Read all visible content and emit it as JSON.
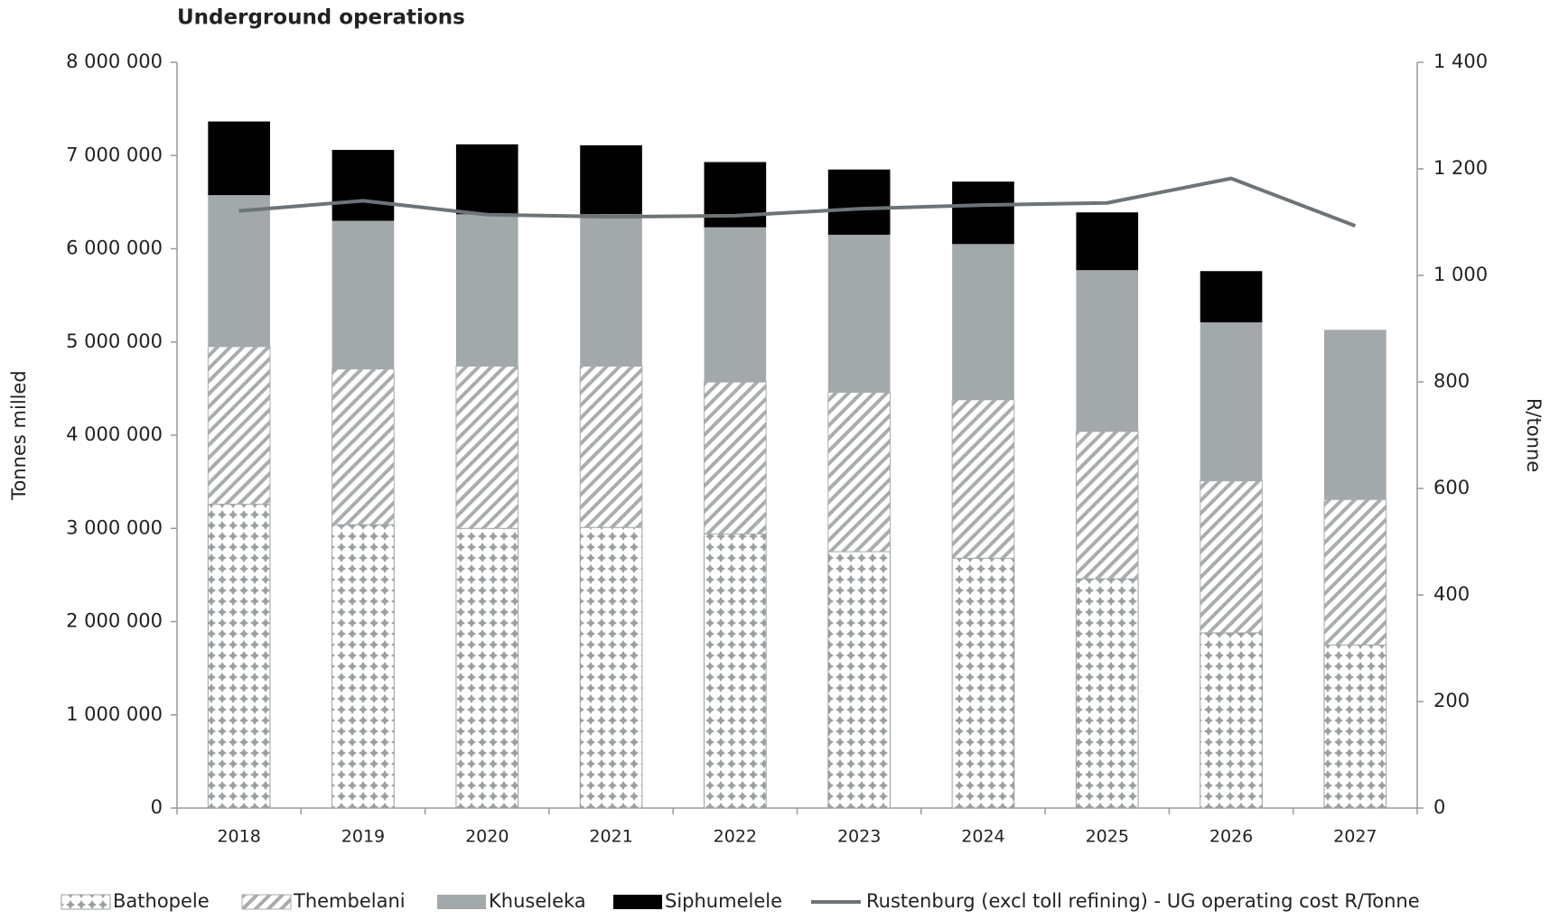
{
  "chart_data": {
    "type": "stacked_bar_line",
    "title": "Underground operations",
    "y_label": "Tonnes milled",
    "y2_label": "R/tonne",
    "categories": [
      "2018",
      "2019",
      "2020",
      "2021",
      "2022",
      "2023",
      "2024",
      "2025",
      "2026",
      "2027"
    ],
    "series": [
      {
        "name": "Bathopele",
        "color": "#9a9fa2",
        "pattern": "dots",
        "values": [
          3260000,
          3040000,
          3000000,
          3010000,
          2940000,
          2750000,
          2680000,
          2460000,
          1880000,
          1750000
        ]
      },
      {
        "name": "Thembelani",
        "color": "#a9adaf",
        "pattern": "hatch",
        "values": [
          1690000,
          1670000,
          1740000,
          1730000,
          1630000,
          1710000,
          1700000,
          1580000,
          1630000,
          1560000
        ]
      },
      {
        "name": "Khuseleka",
        "color": "#a3a8aa",
        "values": [
          1625000,
          1590000,
          1630000,
          1630000,
          1660000,
          1690000,
          1670000,
          1730000,
          1700000,
          1820000
        ]
      },
      {
        "name": "Siphumelele",
        "color": "#000000",
        "values": [
          790000,
          760000,
          750000,
          740000,
          700000,
          700000,
          670000,
          620000,
          550000,
          null
        ]
      },
      {
        "name": "Rustenburg (excl toll refining) - UG operating cost R/Tonne",
        "color": "#6d7478",
        "axis": "y2",
        "kind": "line",
        "values": [
          1121,
          1140,
          1114,
          1110,
          1112,
          1125,
          1132,
          1136,
          1182,
          1093
        ]
      }
    ],
    "ylim": [
      0,
      8000000
    ],
    "yticks": [
      {
        "value": 0,
        "label": "0"
      },
      {
        "value": 1000000,
        "label": "1 000 000"
      },
      {
        "value": 2000000,
        "label": "2 000 000"
      },
      {
        "value": 3000000,
        "label": "3 000 000"
      },
      {
        "value": 4000000,
        "label": "4 000 000"
      },
      {
        "value": 5000000,
        "label": "5 000 000"
      },
      {
        "value": 6000000,
        "label": "6 000 000"
      },
      {
        "value": 7000000,
        "label": "7 000 000"
      },
      {
        "value": 8000000,
        "label": "8 000 000"
      }
    ],
    "y2lim": [
      0,
      1400
    ],
    "y2ticks": [
      0,
      200,
      400,
      600,
      800,
      {
        "value": 1000,
        "label": "1 000"
      },
      {
        "value": 1200,
        "label": "1 200"
      },
      {
        "value": 1400,
        "label": "1 400"
      }
    ],
    "legend": "bottom"
  }
}
